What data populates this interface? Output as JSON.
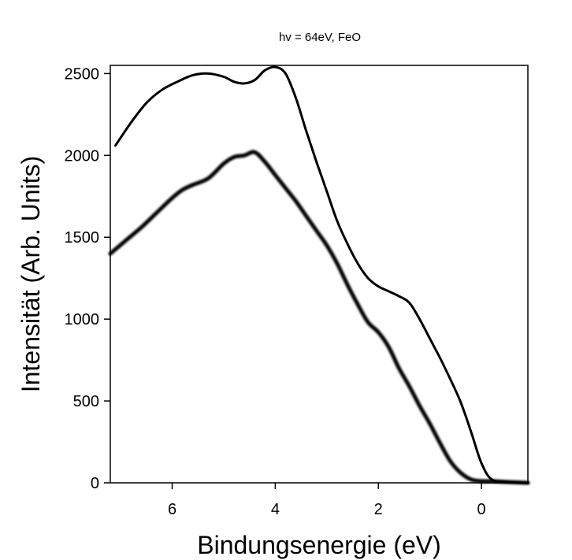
{
  "chart_data": {
    "type": "line",
    "title": "hv = 64eV, FeO",
    "xlabel": "Bindungsenergie (eV)",
    "ylabel": "Intensität (Arb. Units)",
    "x_reversed": true,
    "xlim": [
      7.2,
      -0.9
    ],
    "ylim": [
      0,
      2550
    ],
    "x_ticks": [
      6,
      4,
      2,
      0
    ],
    "y_ticks": [
      0,
      500,
      1000,
      1500,
      2000,
      2500
    ],
    "grid": false,
    "legend": "none",
    "series": [
      {
        "color": "#000000",
        "style": "thin",
        "x": [
          7.1,
          6.8,
          6.5,
          6.2,
          5.9,
          5.6,
          5.3,
          5.0,
          4.8,
          4.6,
          4.4,
          4.2,
          4.0,
          3.8,
          3.6,
          3.4,
          3.2,
          3.0,
          2.8,
          2.6,
          2.4,
          2.2,
          2.0,
          1.8,
          1.6,
          1.4,
          1.2,
          1.0,
          0.8,
          0.6,
          0.4,
          0.2,
          0.0,
          -0.2,
          -0.5,
          -0.9
        ],
        "y": [
          2060,
          2200,
          2320,
          2400,
          2450,
          2490,
          2500,
          2480,
          2450,
          2440,
          2460,
          2520,
          2540,
          2500,
          2350,
          2150,
          1960,
          1780,
          1600,
          1460,
          1340,
          1250,
          1200,
          1170,
          1140,
          1100,
          1000,
          880,
          760,
          630,
          490,
          310,
          120,
          20,
          5,
          0
        ]
      },
      {
        "color": "#000000",
        "style": "thick-noisy",
        "x": [
          7.2,
          6.9,
          6.6,
          6.3,
          6.0,
          5.8,
          5.6,
          5.3,
          5.0,
          4.8,
          4.6,
          4.4,
          4.2,
          4.0,
          3.8,
          3.6,
          3.4,
          3.2,
          3.0,
          2.8,
          2.6,
          2.4,
          2.2,
          2.0,
          1.8,
          1.6,
          1.4,
          1.2,
          1.0,
          0.8,
          0.6,
          0.4,
          0.2,
          0.0,
          -0.2,
          -0.5,
          -0.9
        ],
        "y": [
          1400,
          1480,
          1560,
          1650,
          1740,
          1790,
          1820,
          1860,
          1950,
          1990,
          2000,
          2020,
          1960,
          1880,
          1800,
          1720,
          1630,
          1540,
          1450,
          1340,
          1210,
          1090,
          980,
          920,
          830,
          700,
          590,
          470,
          360,
          240,
          130,
          60,
          20,
          10,
          10,
          5,
          0
        ]
      }
    ]
  }
}
